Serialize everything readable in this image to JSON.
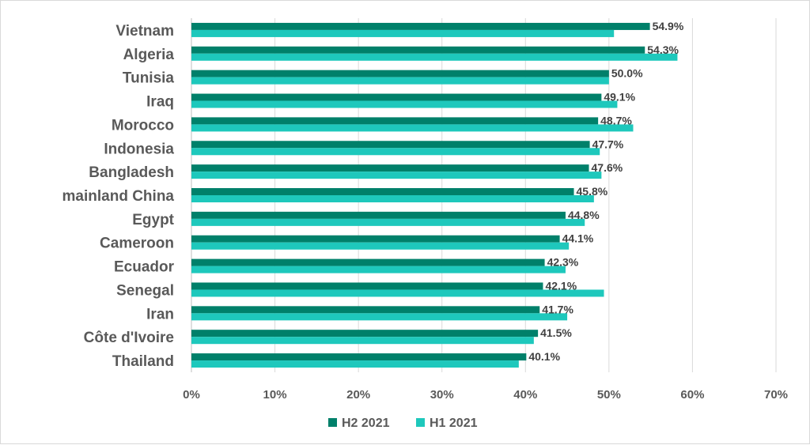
{
  "chart_data": {
    "type": "bar",
    "orientation": "horizontal",
    "categories": [
      "Vietnam",
      "Algeria",
      "Tunisia",
      "Iraq",
      "Morocco",
      "Indonesia",
      "Bangladesh",
      "mainland China",
      "Egypt",
      "Cameroon",
      "Ecuador",
      "Senegal",
      "Iran",
      "Côte d'Ivoire",
      "Thailand"
    ],
    "series": [
      {
        "name": "H2 2021",
        "color": "#00806a",
        "values": [
          54.9,
          54.3,
          50.0,
          49.1,
          48.7,
          47.7,
          47.6,
          45.8,
          44.8,
          44.1,
          42.3,
          42.1,
          41.7,
          41.5,
          40.1
        ],
        "data_labels": [
          "54.9%",
          "54.3%",
          "50.0%",
          "49.1%",
          "48.7%",
          "47.7%",
          "47.6%",
          "45.8%",
          "44.8%",
          "44.1%",
          "42.3%",
          "42.1%",
          "41.7%",
          "41.5%",
          "40.1%"
        ]
      },
      {
        "name": "H1 2021",
        "color": "#1ec8bc",
        "values": [
          50.6,
          58.2,
          50.0,
          51.0,
          52.9,
          48.9,
          49.1,
          48.2,
          47.1,
          45.2,
          44.8,
          49.4,
          45.0,
          41.0,
          39.2
        ]
      }
    ],
    "x_ticks": [
      "0%",
      "10%",
      "20%",
      "30%",
      "40%",
      "50%",
      "60%",
      "70%"
    ],
    "xlim": [
      0,
      70
    ],
    "grid": true,
    "legend_position": "bottom",
    "title": "",
    "xlabel": "",
    "ylabel": ""
  }
}
